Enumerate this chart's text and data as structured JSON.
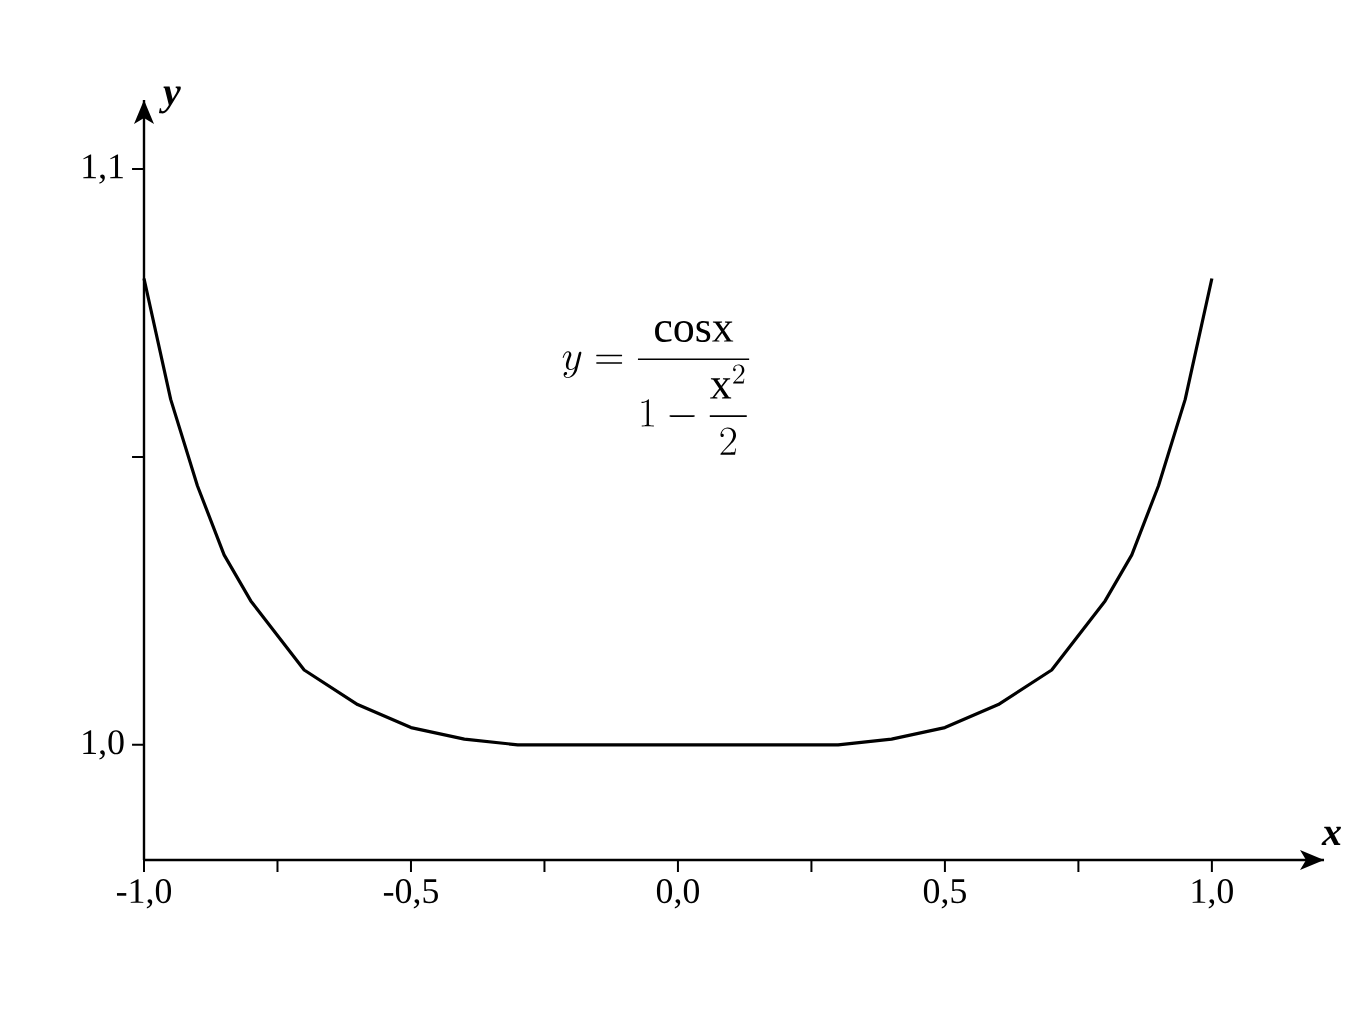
{
  "chart_data": {
    "type": "line",
    "xlabel": "x",
    "ylabel": "y",
    "annotations": [
      "y=\\dfrac{\\mathrm{cosx}}{1-\\dfrac{\\mathrm{x}^{2}}{2}}"
    ],
    "x": [
      -1,
      -0.95,
      -0.9,
      -0.85,
      -0.8,
      -0.7,
      -0.6,
      -0.5,
      -0.4,
      -0.3,
      -0.2,
      -0.1,
      0,
      0.1,
      0.2,
      0.3,
      0.4,
      0.5,
      0.6,
      0.7,
      0.8,
      0.85,
      0.9,
      0.95,
      1
    ],
    "series": [
      {
        "color": "#000000",
        "values": [
          1.081,
          1.06,
          1.045,
          1.033,
          1.025,
          1.013,
          1.007,
          1.003,
          1.001,
          1.0,
          1.0,
          1.0,
          1.0,
          1.0,
          1.0,
          1.0,
          1.001,
          1.003,
          1.007,
          1.013,
          1.025,
          1.033,
          1.045,
          1.06,
          1.081
        ]
      }
    ],
    "xlim": [
      -1,
      1.21
    ],
    "ylim": [
      0.98,
      1.112
    ],
    "xticks": [
      {
        "value": -1,
        "label": "-1,0"
      },
      {
        "value": -0.75,
        "label": null
      },
      {
        "value": -0.5,
        "label": "-0,5"
      },
      {
        "value": -0.25,
        "label": null
      },
      {
        "value": 0,
        "label": "0,0"
      },
      {
        "value": 0.25,
        "label": null
      },
      {
        "value": 0.5,
        "label": "0,5"
      },
      {
        "value": 0.75,
        "label": null
      },
      {
        "value": 1,
        "label": "1,0"
      }
    ],
    "yticks": [
      {
        "value": 1,
        "label": "1,0"
      },
      {
        "value": 1.05,
        "label": null
      },
      {
        "value": 1.1,
        "label": "1,1"
      }
    ]
  }
}
